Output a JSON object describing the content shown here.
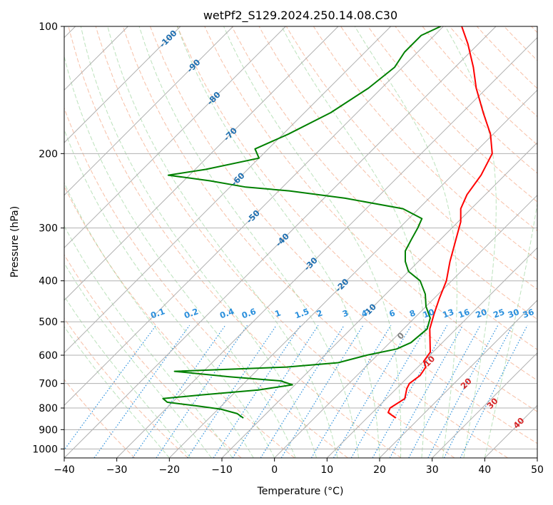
{
  "chart_data": {
    "type": "line",
    "title": "wetPf2_S129.2024.250.14.08.C30",
    "xlabel": "Temperature (°C)",
    "ylabel": "Pressure (hPa)",
    "xlim": [
      -40,
      50
    ],
    "ylim": [
      1050,
      100
    ],
    "y_scale": "log",
    "grid": true,
    "x_ticks": [
      -40,
      -30,
      -20,
      -10,
      0,
      10,
      20,
      30,
      40,
      50
    ],
    "x_tick_labels": [
      "−40",
      "−30",
      "−20",
      "−10",
      "0",
      "10",
      "20",
      "30",
      "40",
      "50"
    ],
    "y_ticks": [
      100,
      200,
      300,
      400,
      500,
      600,
      700,
      800,
      900,
      1000
    ],
    "y_tick_labels": [
      "100",
      "200",
      "300",
      "400",
      "500",
      "600",
      "700",
      "800",
      "900",
      "1000"
    ],
    "isotherm_labels": [
      "-100",
      "-90",
      "-80",
      "-70",
      "-60",
      "-50",
      "-40",
      "-30",
      "-20",
      "-10"
    ],
    "mixing_ratio_labels": [
      "0.1",
      "0.2",
      "0.4",
      "0.6",
      "1",
      "1.5",
      "2",
      "3",
      "4",
      "6",
      "8",
      "10",
      "13",
      "16",
      "20",
      "25",
      "30",
      "36"
    ],
    "dry_adiabat_labels": [
      "10",
      "20",
      "30",
      "40"
    ],
    "moist_adiabat_labels": [
      "0"
    ],
    "series": [
      {
        "color": "#ff0000",
        "points": [
          {
            "p": 845,
            "t": 15.5
          },
          {
            "p": 820,
            "t": 13.0
          },
          {
            "p": 800,
            "t": 12.5
          },
          {
            "p": 760,
            "t": 13.5
          },
          {
            "p": 720,
            "t": 12.0
          },
          {
            "p": 700,
            "t": 11.5
          },
          {
            "p": 670,
            "t": 12.0
          },
          {
            "p": 640,
            "t": 11.5
          },
          {
            "p": 620,
            "t": 10.0
          },
          {
            "p": 590,
            "t": 9.5
          },
          {
            "p": 550,
            "t": 7.0
          },
          {
            "p": 520,
            "t": 5.0
          },
          {
            "p": 480,
            "t": 3.0
          },
          {
            "p": 440,
            "t": 1.0
          },
          {
            "p": 400,
            "t": -1.0
          },
          {
            "p": 360,
            "t": -4.0
          },
          {
            "p": 320,
            "t": -7.0
          },
          {
            "p": 290,
            "t": -9.5
          },
          {
            "p": 270,
            "t": -12.0
          },
          {
            "p": 250,
            "t": -13.5
          },
          {
            "p": 225,
            "t": -14.5
          },
          {
            "p": 200,
            "t": -16.5
          },
          {
            "p": 180,
            "t": -20.5
          },
          {
            "p": 160,
            "t": -26.0
          },
          {
            "p": 140,
            "t": -32.0
          },
          {
            "p": 125,
            "t": -36.5
          },
          {
            "p": 110,
            "t": -42.0
          },
          {
            "p": 100,
            "t": -46.5
          }
        ]
      },
      {
        "color": "#008000",
        "points": [
          {
            "p": 845,
            "t": -13.5
          },
          {
            "p": 825,
            "t": -15.5
          },
          {
            "p": 805,
            "t": -19.5
          },
          {
            "p": 790,
            "t": -25.0
          },
          {
            "p": 775,
            "t": -31.0
          },
          {
            "p": 760,
            "t": -32.5
          },
          {
            "p": 745,
            "t": -26.0
          },
          {
            "p": 725,
            "t": -16.0
          },
          {
            "p": 705,
            "t": -10.5
          },
          {
            "p": 690,
            "t": -13.5
          },
          {
            "p": 675,
            "t": -24.0
          },
          {
            "p": 655,
            "t": -35.5
          },
          {
            "p": 640,
            "t": -15.0
          },
          {
            "p": 625,
            "t": -6.0
          },
          {
            "p": 600,
            "t": -2.0
          },
          {
            "p": 580,
            "t": 2.5
          },
          {
            "p": 560,
            "t": 4.0
          },
          {
            "p": 520,
            "t": 4.5
          },
          {
            "p": 490,
            "t": 3.0
          },
          {
            "p": 460,
            "t": 0.0
          },
          {
            "p": 430,
            "t": -2.5
          },
          {
            "p": 400,
            "t": -6.0
          },
          {
            "p": 380,
            "t": -10.0
          },
          {
            "p": 360,
            "t": -12.5
          },
          {
            "p": 340,
            "t": -14.5
          },
          {
            "p": 320,
            "t": -15.5
          },
          {
            "p": 300,
            "t": -16.5
          },
          {
            "p": 285,
            "t": -17.5
          },
          {
            "p": 270,
            "t": -23.0
          },
          {
            "p": 255,
            "t": -36.0
          },
          {
            "p": 245,
            "t": -48.0
          },
          {
            "p": 240,
            "t": -57.0
          },
          {
            "p": 232,
            "t": -65.0
          },
          {
            "p": 225,
            "t": -74.0
          },
          {
            "p": 218,
            "t": -68.0
          },
          {
            "p": 205,
            "t": -60.0
          },
          {
            "p": 195,
            "t": -62.5
          },
          {
            "p": 180,
            "t": -59.0
          },
          {
            "p": 160,
            "t": -55.0
          },
          {
            "p": 140,
            "t": -52.5
          },
          {
            "p": 125,
            "t": -51.5
          },
          {
            "p": 115,
            "t": -52.5
          },
          {
            "p": 105,
            "t": -52.5
          },
          {
            "p": 100,
            "t": -50.5
          }
        ]
      }
    ]
  }
}
